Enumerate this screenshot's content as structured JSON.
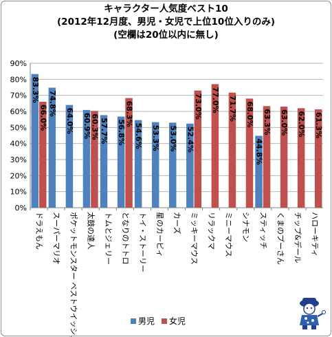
{
  "colors": {
    "boys": "#4f81bd",
    "girls": "#c0504d",
    "grid": "#b3b3b3",
    "axis": "#808080"
  },
  "chart_data": {
    "type": "bar",
    "title_lines": [
      "キャラクター人気度ベスト10",
      "(2012年12月度、男児・女児で上位10位入りのみ)",
      "(空欄は20位以内に無し)"
    ],
    "xlabel": "",
    "ylabel": "",
    "ylim": [
      0,
      90
    ],
    "yticks": [
      "0%",
      "10%",
      "20%",
      "30%",
      "40%",
      "50%",
      "60%",
      "70%",
      "80%",
      "90%"
    ],
    "grid": true,
    "legend_position": "bottom",
    "categories": [
      "ドラえもん",
      "スーパーマリオ",
      "ポケットモンスター ベストウイッシュ",
      "太鼓の達人",
      "トムとジェリー",
      "となりのトトロ",
      "トイ・ストーリー",
      "星のカービィ",
      "カーズ",
      "ミッキーマウス",
      "リラックマ",
      "ミニーマウス",
      "シナモン",
      "スティッチ",
      "くまのプーさん",
      "チップ&デール",
      "ハローキティ"
    ],
    "series": [
      {
        "name": "男児",
        "values": [
          83.3,
          74.8,
          64.0,
          60.9,
          57.7,
          56.8,
          54.6,
          53.3,
          53.0,
          52.4,
          null,
          null,
          null,
          44.8,
          null,
          null,
          null
        ],
        "labels": [
          "83.3%",
          "74.8%",
          "64.0%",
          "60.9%",
          "57.7%",
          "56.8%",
          "54.6%",
          "53.3%",
          "53.0%",
          "52.4%",
          "",
          "",
          "",
          "44.8%",
          "",
          "",
          ""
        ]
      },
      {
        "name": "女児",
        "values": [
          66.0,
          null,
          null,
          60.3,
          null,
          68.3,
          null,
          null,
          null,
          73.0,
          77.0,
          71.7,
          68.0,
          63.3,
          63.0,
          62.0,
          61.3
        ],
        "labels": [
          "66.0%",
          "",
          "",
          "60.3%",
          "",
          "68.3%",
          "",
          "",
          "",
          "73.0%",
          "77.0%",
          "71.7%",
          "68.0%",
          "63.3%",
          "63.0%",
          "62.0%",
          "61.3%"
        ]
      }
    ]
  }
}
